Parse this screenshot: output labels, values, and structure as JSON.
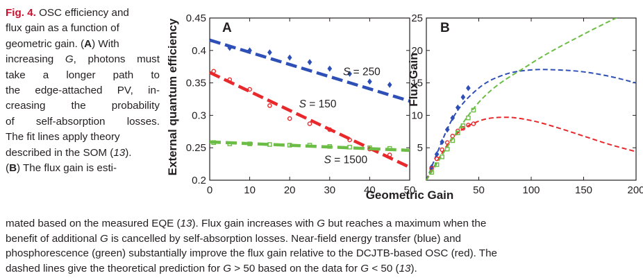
{
  "caption": {
    "fig_label": "Fig. 4.",
    "side_lines": [
      {
        "segments": [
          {
            "k": "fig",
            "t": "Fig. 4."
          },
          {
            "t": " OSC efficiency and"
          }
        ]
      },
      {
        "segments": [
          {
            "t": "flux gain as a function of"
          }
        ]
      },
      {
        "segments": [
          {
            "t": "geometric gain. ("
          },
          {
            "k": "bold",
            "t": "A"
          },
          {
            "t": ") With"
          }
        ]
      },
      {
        "segments": [
          {
            "t": "increasing "
          },
          {
            "k": "it",
            "t": "G"
          },
          {
            "t": ", photons must"
          }
        ],
        "justify": true
      },
      {
        "segments": [
          {
            "t": "take a longer path to"
          }
        ],
        "justify": true
      },
      {
        "segments": [
          {
            "t": "the edge-attached PV, in-"
          }
        ],
        "justify": true
      },
      {
        "segments": [
          {
            "t": "creasing the probability"
          }
        ],
        "justify": true
      },
      {
        "segments": [
          {
            "t": "of self-absorption losses."
          }
        ],
        "justify": true
      },
      {
        "segments": [
          {
            "t": "The fit lines apply theory"
          }
        ]
      },
      {
        "segments": [
          {
            "t": "described in the SOM ("
          },
          {
            "k": "it",
            "t": "13"
          },
          {
            "t": ")."
          }
        ]
      },
      {
        "segments": [
          {
            "t": "("
          },
          {
            "k": "bold",
            "t": "B"
          },
          {
            "t": ") The flux gain is esti-"
          }
        ]
      }
    ],
    "bottom_lines": [
      {
        "segments": [
          {
            "t": "mated based on the measured EQE ("
          },
          {
            "k": "it",
            "t": "13"
          },
          {
            "t": "). Flux gain increases with "
          },
          {
            "k": "it",
            "t": "G"
          },
          {
            "t": " but reaches a maximum when the"
          }
        ]
      },
      {
        "segments": [
          {
            "t": "benefit of additional "
          },
          {
            "k": "it",
            "t": "G"
          },
          {
            "t": " is cancelled by self-absorption losses. Near-field energy transfer (blue) and"
          }
        ]
      },
      {
        "segments": [
          {
            "t": "phosphorescence (green) substantially improve the flux gain relative to the DCJTB-based OSC (red). The"
          }
        ]
      },
      {
        "segments": [
          {
            "t": "dashed lines give the theoretical prediction for "
          },
          {
            "k": "it",
            "t": "G"
          },
          {
            "t": " > 50 based on the data for "
          },
          {
            "k": "it",
            "t": "G"
          },
          {
            "t": " < 50 ("
          },
          {
            "k": "it",
            "t": "13"
          },
          {
            "t": ")."
          }
        ]
      }
    ]
  },
  "colors": {
    "red": "#e8282b",
    "blue": "#2e4fb5",
    "green": "#6cbd45",
    "caption_red": "#c8102e"
  },
  "chart_data": [
    {
      "panel": "A",
      "type": "scatter",
      "xlabel": "Geometric Gain",
      "ylabel": "External quantum efficiency",
      "xlim": [
        0,
        50
      ],
      "ylim": [
        0.2,
        0.45
      ],
      "xticks": [
        "0",
        "10",
        "20",
        "30",
        "40",
        "50"
      ],
      "yticks": [
        "0.2",
        "0.25",
        "0.3",
        "0.35",
        "0.4",
        "0.45"
      ],
      "series": [
        {
          "name": "S = 250",
          "color": "blue",
          "marker": "diamond",
          "x": [
            5,
            10,
            15,
            20,
            25,
            30,
            35,
            40,
            45
          ],
          "y": [
            0.404,
            0.4,
            0.397,
            0.389,
            0.382,
            0.372,
            0.364,
            0.352,
            0.347
          ],
          "fit": {
            "x": [
              0,
              50
            ],
            "y": [
              0.416,
              0.322
            ]
          },
          "label": {
            "pre": "S",
            "post": " = 250",
            "at": [
              38,
              0.362
            ]
          }
        },
        {
          "name": "S = 150",
          "color": "red",
          "marker": "circle",
          "x": [
            1,
            5,
            10,
            15,
            20,
            25,
            30,
            35,
            40,
            45
          ],
          "y": [
            0.368,
            0.355,
            0.34,
            0.315,
            0.295,
            0.287,
            0.278,
            0.262,
            0.248,
            0.239
          ],
          "fit": {
            "x": [
              0,
              50
            ],
            "y": [
              0.366,
              0.22
            ]
          },
          "label": {
            "pre": "S",
            "post": " = 150",
            "at": [
              27,
              0.312
            ]
          }
        },
        {
          "name": "S = 1500",
          "color": "green",
          "marker": "square",
          "x": [
            1,
            5,
            10,
            15,
            20,
            25,
            30,
            35,
            40,
            45
          ],
          "y": [
            0.258,
            0.256,
            0.256,
            0.255,
            0.254,
            0.254,
            0.252,
            0.251,
            0.25,
            0.249
          ],
          "fit": {
            "x": [
              0,
              50
            ],
            "y": [
              0.259,
              0.246
            ]
          },
          "label": {
            "pre": "S",
            "post": " = 1500",
            "at": [
              34,
              0.226
            ]
          }
        }
      ]
    },
    {
      "panel": "B",
      "type": "scatter",
      "xlabel": "",
      "ylabel": "Flux Gain",
      "xlim": [
        0,
        200
      ],
      "ylim": [
        0,
        25
      ],
      "xticks": [
        "50",
        "100",
        "150",
        "200"
      ],
      "yticks": [
        "5",
        "10",
        "15",
        "20",
        "25"
      ],
      "series": [
        {
          "name": "blue",
          "color": "blue",
          "marker": "diamond",
          "x": [
            5,
            10,
            15,
            20,
            25,
            30,
            35,
            40
          ],
          "y": [
            2.0,
            4.0,
            5.9,
            7.8,
            9.6,
            11.2,
            12.8,
            14.2
          ],
          "curve": {
            "x": [
              0,
              25,
              50,
              75,
              100,
              125,
              150,
              175,
              200
            ],
            "y": [
              0,
              9.5,
              14.2,
              16.3,
              17.0,
              17.0,
              16.7,
              16.0,
              15.0
            ]
          }
        },
        {
          "name": "red",
          "color": "red",
          "marker": "circle",
          "x": [
            5,
            10,
            15,
            20,
            25,
            30,
            35,
            40,
            45
          ],
          "y": [
            1.8,
            3.3,
            4.7,
            5.8,
            6.8,
            7.6,
            8.0,
            8.5,
            8.7
          ],
          "curve": {
            "x": [
              0,
              25,
              50,
              75,
              100,
              125,
              150,
              175,
              200
            ],
            "y": [
              0,
              6.5,
              9.1,
              9.7,
              9.2,
              8.1,
              6.8,
              5.5,
              4.4
            ]
          }
        },
        {
          "name": "green",
          "color": "green",
          "marker": "square",
          "x": [
            5,
            10,
            15,
            20,
            25,
            30,
            35,
            40,
            45
          ],
          "y": [
            1.2,
            2.4,
            3.6,
            4.8,
            6.1,
            7.3,
            8.4,
            9.6,
            10.8
          ],
          "curve": {
            "x": [
              0,
              50,
              100,
              150,
              200
            ],
            "y": [
              0,
              12.0,
              18.0,
              22.5,
              26.5
            ]
          }
        }
      ]
    }
  ]
}
